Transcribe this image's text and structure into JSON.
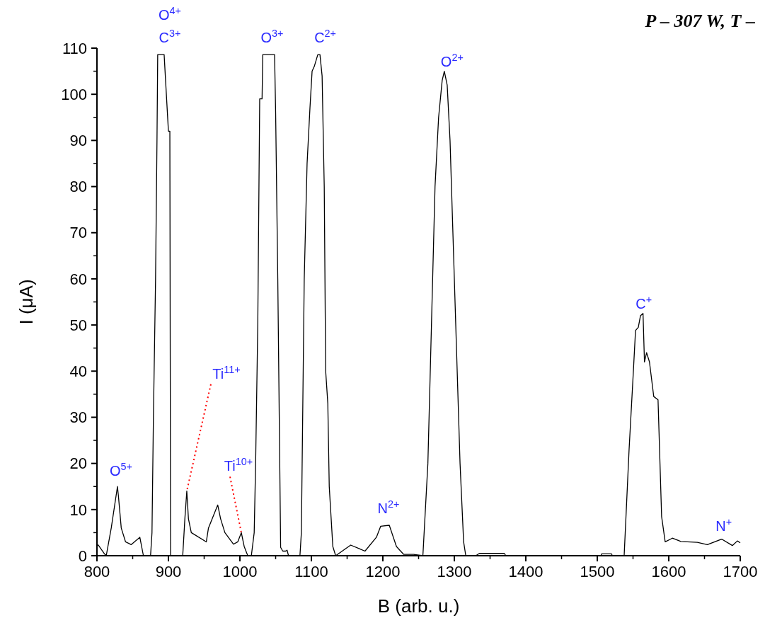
{
  "chart_data": {
    "type": "line",
    "title": "P – 307 W, T –",
    "xlabel": "B (arb. u.)",
    "ylabel": "I (μA)",
    "xlim": [
      800,
      1700
    ],
    "xticks": [
      800,
      900,
      1000,
      1100,
      1200,
      1300,
      1400,
      1500,
      1600,
      1700
    ],
    "ylim": [
      0,
      110
    ],
    "yticks": [
      0,
      10,
      20,
      30,
      40,
      50,
      60,
      70,
      80,
      90,
      100,
      110
    ],
    "grid": false,
    "marker": "none",
    "line_style": "solid",
    "series": [
      {
        "color": "#000000",
        "x": [
          800,
          800.5,
          802,
          810,
          813,
          820,
          828.7,
          830,
          834,
          840,
          848,
          860,
          865,
          870,
          875,
          877,
          879,
          882,
          884,
          885,
          894,
          896,
          900,
          902,
          903,
          920,
          923,
          925.7,
          928,
          932,
          953,
          956,
          969,
          973,
          979,
          991,
          997,
          1002,
          1006,
          1011,
          1016,
          1020,
          1022,
          1025,
          1027.7,
          1031,
          1032,
          1048.5,
          1050,
          1053,
          1057,
          1060,
          1064,
          1066,
          1068,
          1084,
          1086,
          1090,
          1094,
          1098,
          1101,
          1104,
          1109,
          1112,
          1115,
          1118,
          1120,
          1123,
          1125,
          1130,
          1134,
          1155,
          1175,
          1191,
          1197,
          1209,
          1219,
          1229,
          1243,
          1256,
          1263,
          1268,
          1273,
          1278,
          1283,
          1286,
          1290,
          1294,
          1298,
          1303,
          1308,
          1313,
          1316,
          1330,
          1335,
          1370,
          1372,
          1505,
          1506,
          1520,
          1521,
          1537.6,
          1540,
          1544.5,
          1550.5,
          1553.5,
          1557.4,
          1560.4,
          1564,
          1566,
          1569,
          1573,
          1579,
          1585,
          1590,
          1595,
          1605,
          1617,
          1640,
          1654,
          1674,
          1689,
          1696,
          1700
        ],
        "values": [
          38,
          2.3,
          2.3,
          0.5,
          0,
          6,
          15,
          13,
          6,
          3,
          2.4,
          4,
          0,
          0,
          0,
          5,
          30,
          60,
          90,
          108.6,
          108.6,
          103,
          92,
          92,
          0,
          0,
          8,
          14,
          8,
          5,
          3,
          6,
          11,
          8,
          5,
          2.5,
          3,
          5,
          2,
          0,
          0,
          5,
          20,
          50,
          99,
          99,
          108.6,
          108.6,
          96,
          60,
          1.8,
          1,
          1,
          1.2,
          0,
          0,
          5,
          60,
          85,
          97,
          105,
          106,
          108.6,
          108.6,
          104,
          80,
          40,
          33,
          15,
          2,
          0,
          2.3,
          1,
          4,
          6.4,
          6.6,
          2,
          0.3,
          0.3,
          0,
          20,
          50,
          80,
          95,
          103,
          105,
          102,
          90,
          70,
          45,
          20,
          3,
          0,
          0,
          0.5,
          0.5,
          0,
          0,
          0.4,
          0.4,
          0,
          0,
          8,
          23,
          40,
          48.8,
          49.5,
          52,
          52.5,
          42,
          44,
          42,
          34.5,
          33.8,
          8.5,
          3,
          3.8,
          3.1,
          2.9,
          2.4,
          3.6,
          2.2,
          3.2,
          2.8
        ]
      }
    ],
    "annotations": [
      {
        "text": "O$^{5+}$",
        "x": 828.7,
        "y": 15
      },
      {
        "text": "O$^{4+}$",
        "x": 889,
        "y": 108.6
      },
      {
        "text": "C$^{3+}$",
        "x": 889,
        "y": 108.6
      },
      {
        "text": "Ti$^{11+}$",
        "x": 925.7,
        "y": 14
      },
      {
        "text": "Ti$^{10+}$",
        "x": 1002,
        "y": 5
      },
      {
        "text": "O$^{3+}$",
        "x": 1040,
        "y": 108.6
      },
      {
        "text": "C$^{2+}$",
        "x": 1110.5,
        "y": 108.6
      },
      {
        "text": "N$^{2+}$",
        "x": 1203,
        "y": 6.6
      },
      {
        "text": "O$^{2+}$",
        "x": 1286,
        "y": 105
      },
      {
        "text": "C$^{+}$",
        "x": 1564,
        "y": 52.5
      },
      {
        "text": "N$^{+}$",
        "x": 1672,
        "y": 3.6
      }
    ]
  }
}
